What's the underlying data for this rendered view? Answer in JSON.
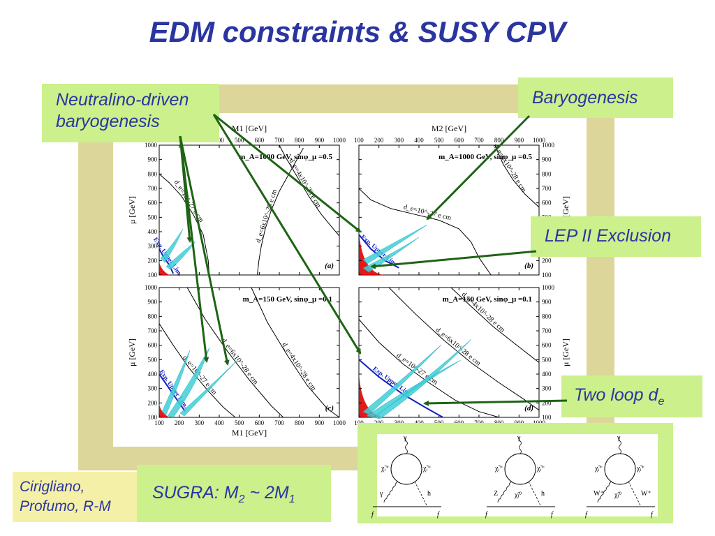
{
  "slide_title": "EDM constraints & SUSY CPV",
  "callouts": {
    "neutralino_line1": "Neutralino-driven",
    "neutralino_line2": "baryogenesis",
    "baryogenesis": "Baryogenesis",
    "lep": "LEP II Exclusion",
    "two_loop_main": "Two loop d",
    "two_loop_sub": "e",
    "sugra_prefix": "SUGRA: M",
    "sugra_sub1": "2",
    "sugra_mid": " ~ 2M",
    "sugra_sub2": "1",
    "authors_line1": "Cirigliano,",
    "authors_line2": "Profumo, R-M"
  },
  "colors": {
    "title": "#2a35a0",
    "frame": "#ddd69a",
    "callout_bg": "#ccf08c",
    "arrow": "#1e6414",
    "exclusion": "#e00000",
    "upper_limit": "#1020c0",
    "baryogenesis_band": "#40d0d8"
  },
  "chart_data": [
    {
      "type": "line",
      "panel_label": "(a)",
      "title": "m_A=1000 GeV, sinφ_μ =0.5",
      "xlabel": "M1 [GeV]",
      "ylabel": "μ [GeV]",
      "xlim": [
        100,
        1000
      ],
      "ylim": [
        100,
        1000
      ],
      "ticks": [
        "100",
        "200",
        "300",
        "400",
        "500",
        "600",
        "700",
        "800",
        "900",
        "1000"
      ],
      "series": [
        {
          "name": "d_e=4x10^-28 e cm",
          "x": [
            700,
            730,
            790,
            850,
            910,
            970,
            1000
          ],
          "y": [
            1000,
            920,
            780,
            640,
            520,
            420,
            370
          ]
        },
        {
          "name": "d_e=6x10^-28 e cm",
          "x": [
            590,
            598,
            610,
            630,
            660,
            700,
            760,
            820
          ],
          "y": [
            100,
            200,
            300,
            420,
            550,
            680,
            830,
            980
          ]
        },
        {
          "name": "d_e=10^-27 e cm",
          "x": [
            100,
            150,
            210,
            270,
            320,
            345,
            350
          ],
          "y": [
            800,
            740,
            650,
            520,
            380,
            200,
            100
          ]
        },
        {
          "name": "Exp. Upper Lim.",
          "x": [
            100,
            120,
            150,
            170
          ],
          "y": [
            280,
            230,
            170,
            110
          ]
        }
      ]
    },
    {
      "type": "line",
      "panel_label": "(b)",
      "title": "m_A=1000 GeV, sinφ_μ =0.5",
      "xlabel": "M2 [GeV]",
      "ylabel": "μ [GeV]",
      "xlim": [
        100,
        1000
      ],
      "ylim": [
        100,
        1000
      ],
      "ticks": [
        "100",
        "200",
        "300",
        "400",
        "500",
        "600",
        "700",
        "800",
        "900",
        "1000"
      ],
      "series": [
        {
          "name": "d_e=10^-27 e cm",
          "x": [
            100,
            160,
            260,
            380,
            500,
            600,
            660,
            700,
            760
          ],
          "y": [
            700,
            620,
            560,
            520,
            480,
            420,
            330,
            220,
            100
          ]
        },
        {
          "name": "d_e=6x10^-28 e cm",
          "x": [
            780,
            820,
            870,
            930,
            1000
          ],
          "y": [
            1000,
            870,
            760,
            660,
            570
          ]
        },
        {
          "name": "Exp. Upper Lim.",
          "x": [
            100,
            160,
            230,
            300
          ],
          "y": [
            380,
            280,
            200,
            150
          ]
        }
      ]
    },
    {
      "type": "line",
      "panel_label": "(c)",
      "title": "m_A=150 GeV, sinφ_μ =0.1",
      "xlabel": "M1 [GeV]",
      "ylabel": "μ [GeV]",
      "xlim": [
        100,
        1000
      ],
      "ylim": [
        100,
        1000
      ],
      "ticks": [
        "100",
        "200",
        "300",
        "400",
        "500",
        "600",
        "700",
        "800",
        "900",
        "1000"
      ],
      "series": [
        {
          "name": "d_e=10^-27 e cm",
          "x": [
            100,
            170,
            250,
            340,
            420,
            480
          ],
          "y": [
            750,
            600,
            440,
            290,
            170,
            100
          ]
        },
        {
          "name": "d_e=6x10^-28 e cm",
          "x": [
            240,
            330,
            440,
            550,
            660,
            720
          ],
          "y": [
            1000,
            780,
            560,
            360,
            180,
            100
          ]
        },
        {
          "name": "d_e=4x10^-28 e cm",
          "x": [
            560,
            640,
            740,
            840,
            940,
            1000
          ],
          "y": [
            1000,
            760,
            530,
            320,
            160,
            100
          ]
        },
        {
          "name": "Exp. Upper Lim.",
          "x": [
            100,
            140,
            190,
            230
          ],
          "y": [
            400,
            320,
            220,
            140
          ]
        }
      ]
    },
    {
      "type": "line",
      "panel_label": "(d)",
      "title": "m_A=150 GeV, sinφ_μ =0.1",
      "xlabel": "M2 [GeV]",
      "ylabel": "μ [GeV]",
      "xlim": [
        100,
        1000
      ],
      "ylim": [
        100,
        1000
      ],
      "ticks": [
        "100",
        "200",
        "300",
        "400",
        "500",
        "600",
        "700",
        "800",
        "900",
        "1000"
      ],
      "series": [
        {
          "name": "d_e=10^-27 e cm",
          "x": [
            100,
            200,
            320,
            450,
            580,
            700,
            800
          ],
          "y": [
            780,
            620,
            470,
            340,
            220,
            140,
            100
          ]
        },
        {
          "name": "d_e=6x10^-28 e cm",
          "x": [
            250,
            380,
            520,
            660,
            800,
            930,
            1000
          ],
          "y": [
            1000,
            820,
            640,
            480,
            340,
            220,
            150
          ]
        },
        {
          "name": "d_e=4x10^-28 e cm",
          "x": [
            560,
            660,
            770,
            880,
            1000
          ],
          "y": [
            1000,
            870,
            730,
            610,
            480
          ]
        },
        {
          "name": "Exp. Upper Lim.",
          "x": [
            100,
            200,
            320,
            430,
            520
          ],
          "y": [
            500,
            380,
            260,
            170,
            100
          ]
        }
      ]
    }
  ],
  "diagrams": [
    {
      "top": "γ",
      "left": "χ̃ᵢ⁺",
      "right": "χ̃ᵢ⁺",
      "bottom_left": "γ",
      "bottom_right": "h",
      "line_left": "f",
      "line_right": "f"
    },
    {
      "top": "γ",
      "left": "χ̃ᵢ⁺",
      "right": "χ̃ᵢ⁺",
      "bottom_left": "Z",
      "bottom_mid": "χ̃ⱼ⁰",
      "bottom_right": "h",
      "line_left": "f",
      "line_right": "f"
    },
    {
      "top": "γ",
      "left": "χ̃ᵢ⁺",
      "right": "χ̃ᵢ⁺",
      "bottom_left": "W⁺",
      "bottom_mid": "χ̃ⱼ⁰",
      "bottom_right": "W⁺",
      "line_left": "f",
      "line_right": "f"
    }
  ]
}
